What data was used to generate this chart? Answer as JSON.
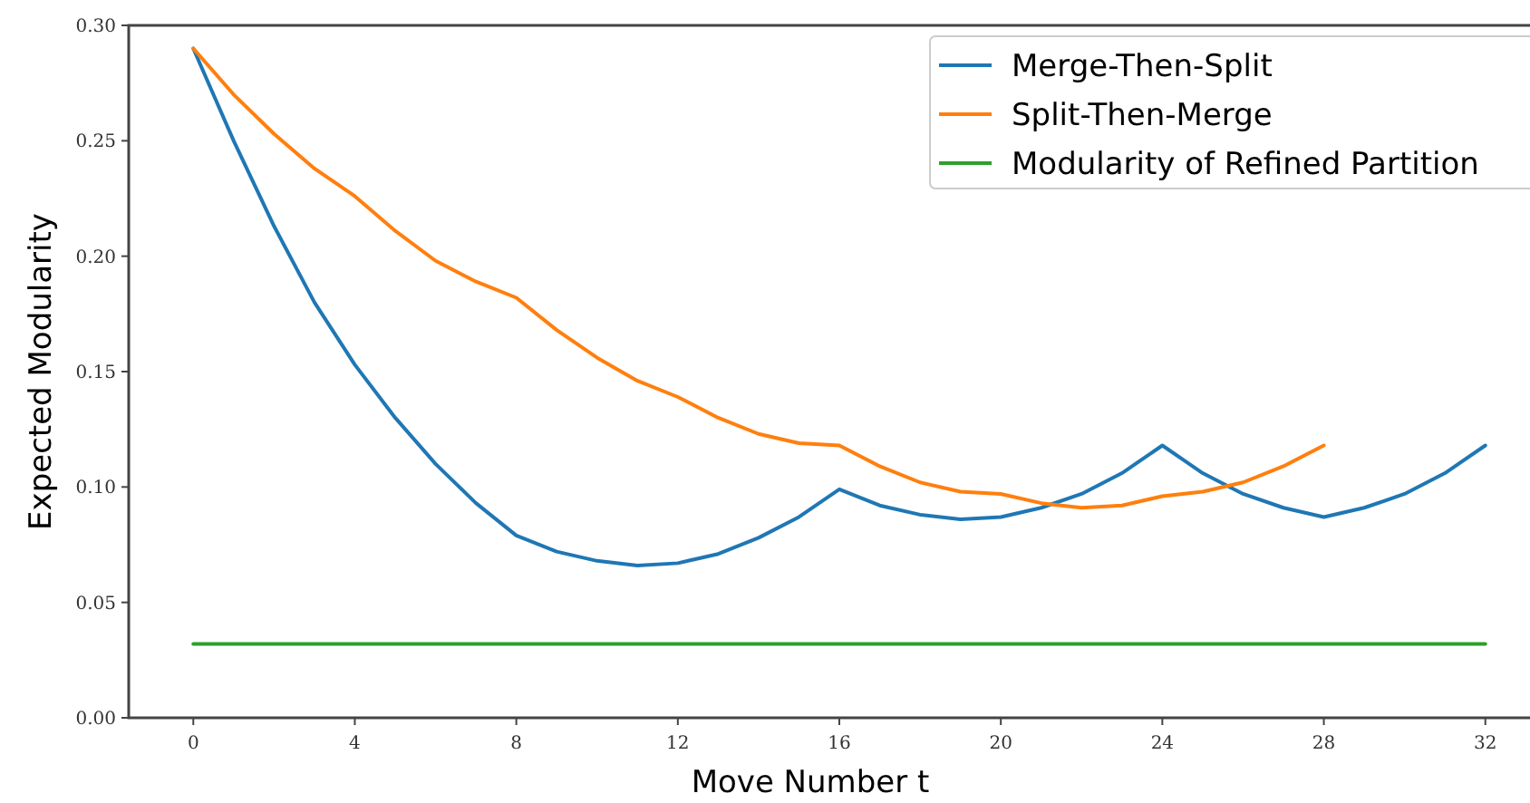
{
  "chart_data": {
    "type": "line",
    "xlabel": "Move Number t",
    "ylabel": "Expected Modularity",
    "xlim": [
      -1.6,
      33.6
    ],
    "ylim": [
      0,
      0.3
    ],
    "xticks": [
      0,
      4,
      8,
      12,
      16,
      20,
      24,
      28,
      32
    ],
    "yticks": [
      {
        "value": 0,
        "label": "0.00"
      },
      {
        "value": 0.05,
        "label": "0.05"
      },
      {
        "value": 0.1,
        "label": "0.10"
      },
      {
        "value": 0.15,
        "label": "0.15"
      },
      {
        "value": 0.2,
        "label": "0.20"
      },
      {
        "value": 0.25,
        "label": "0.25"
      },
      {
        "value": 0.3,
        "label": "0.30"
      }
    ],
    "grid": false,
    "legend": "top right",
    "line_style": "solid",
    "marker": "none",
    "series": [
      {
        "name": "Merge-Then-Split",
        "color": "#1f77b4",
        "x": [
          0,
          1,
          2,
          3,
          4,
          5,
          6,
          7,
          8,
          9,
          10,
          11,
          12,
          13,
          14,
          15,
          16,
          17,
          18,
          19,
          20,
          21,
          22,
          23,
          24,
          25,
          26,
          27,
          28,
          29,
          30,
          31,
          32
        ],
        "values": [
          0.29,
          0.25,
          0.213,
          0.18,
          0.153,
          0.13,
          0.11,
          0.093,
          0.079,
          0.072,
          0.068,
          0.066,
          0.067,
          0.071,
          0.078,
          0.087,
          0.099,
          0.092,
          0.088,
          0.086,
          0.087,
          0.091,
          0.097,
          0.106,
          0.118,
          0.106,
          0.097,
          0.091,
          0.087,
          0.091,
          0.097,
          0.106,
          0.118
        ]
      },
      {
        "name": "Split-Then-Merge",
        "color": "#ff7f0e",
        "x": [
          0,
          1,
          2,
          3,
          4,
          5,
          6,
          7,
          8,
          9,
          10,
          11,
          12,
          13,
          14,
          15,
          16,
          17,
          18,
          19,
          20,
          21,
          22,
          23,
          24,
          25,
          26,
          27,
          28
        ],
        "values": [
          0.29,
          0.27,
          0.253,
          0.238,
          0.226,
          0.211,
          0.198,
          0.189,
          0.182,
          0.168,
          0.156,
          0.146,
          0.139,
          0.13,
          0.123,
          0.119,
          0.118,
          0.109,
          0.102,
          0.098,
          0.097,
          0.093,
          0.091,
          0.092,
          0.096,
          0.098,
          0.102,
          0.109,
          0.118
        ]
      },
      {
        "name": "Modularity of Refined Partition",
        "color": "#2ca02c",
        "x": [
          0,
          32
        ],
        "values": [
          0.032,
          0.032
        ]
      }
    ]
  }
}
